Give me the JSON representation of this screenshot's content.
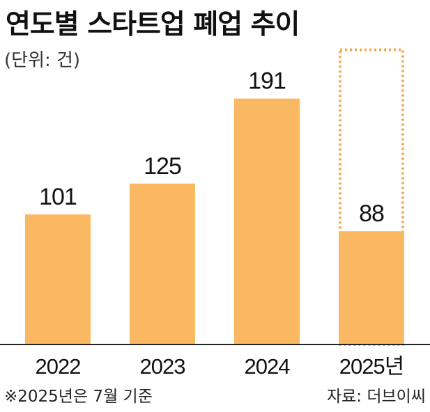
{
  "title": "연도별 스타트업 폐업 추이",
  "unit_label": "(단위: 건)",
  "footnote": "※2025년은 7월 기준",
  "source": "자료: 더브이씨",
  "colors": {
    "bar": "#FBB862",
    "projection_outline": "#F6A94A",
    "axis": "#222222",
    "text": "#111111"
  },
  "chart_data": {
    "type": "bar",
    "title": "연도별 스타트업 폐업 추이",
    "ylabel": "(단위: 건)",
    "xlabel": "",
    "categories": [
      "2022",
      "2023",
      "2024",
      "2025년"
    ],
    "values": [
      101,
      125,
      191,
      88
    ],
    "ylim": [
      0,
      200
    ],
    "grid": false,
    "partial_year_marker": {
      "category": "2025년",
      "note": "※2025년은 7월 기준",
      "style": "dotted outline"
    }
  }
}
